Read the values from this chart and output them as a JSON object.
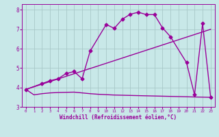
{
  "xlabel": "Windchill (Refroidissement éolien,°C)",
  "background_color": "#c8e8e8",
  "grid_color": "#a8c8c8",
  "line_color": "#990099",
  "xlim": [
    -0.5,
    23.5
  ],
  "ylim": [
    3.0,
    8.3
  ],
  "yticks": [
    3,
    4,
    5,
    6,
    7,
    8
  ],
  "xticks": [
    0,
    1,
    2,
    3,
    4,
    5,
    6,
    7,
    8,
    9,
    10,
    11,
    12,
    13,
    14,
    15,
    16,
    17,
    18,
    19,
    20,
    21,
    22,
    23
  ],
  "line1_x": [
    0,
    1,
    2,
    3,
    4,
    5,
    6,
    7,
    8,
    9,
    10,
    11,
    12,
    13,
    14,
    15,
    16,
    17,
    18,
    19,
    20,
    21,
    22,
    23
  ],
  "line1_y": [
    3.9,
    3.62,
    3.68,
    3.72,
    3.74,
    3.75,
    3.76,
    3.72,
    3.68,
    3.65,
    3.63,
    3.61,
    3.6,
    3.59,
    3.58,
    3.57,
    3.56,
    3.55,
    3.54,
    3.53,
    3.52,
    3.51,
    3.5,
    3.49
  ],
  "line2_x": [
    0,
    23
  ],
  "line2_y": [
    3.9,
    7.0
  ],
  "line3_x": [
    0,
    2,
    3,
    4,
    5,
    6,
    7,
    8,
    10,
    11,
    12,
    13,
    14,
    15,
    16,
    17,
    18,
    20,
    21,
    22,
    23
  ],
  "line3_y": [
    3.9,
    4.2,
    4.35,
    4.45,
    4.72,
    4.82,
    4.45,
    5.88,
    7.25,
    7.05,
    7.52,
    7.78,
    7.88,
    7.76,
    7.76,
    7.08,
    6.62,
    5.28,
    3.62,
    7.3,
    3.5
  ],
  "marker": "D",
  "markersize": 2.5,
  "linewidth": 1.0
}
